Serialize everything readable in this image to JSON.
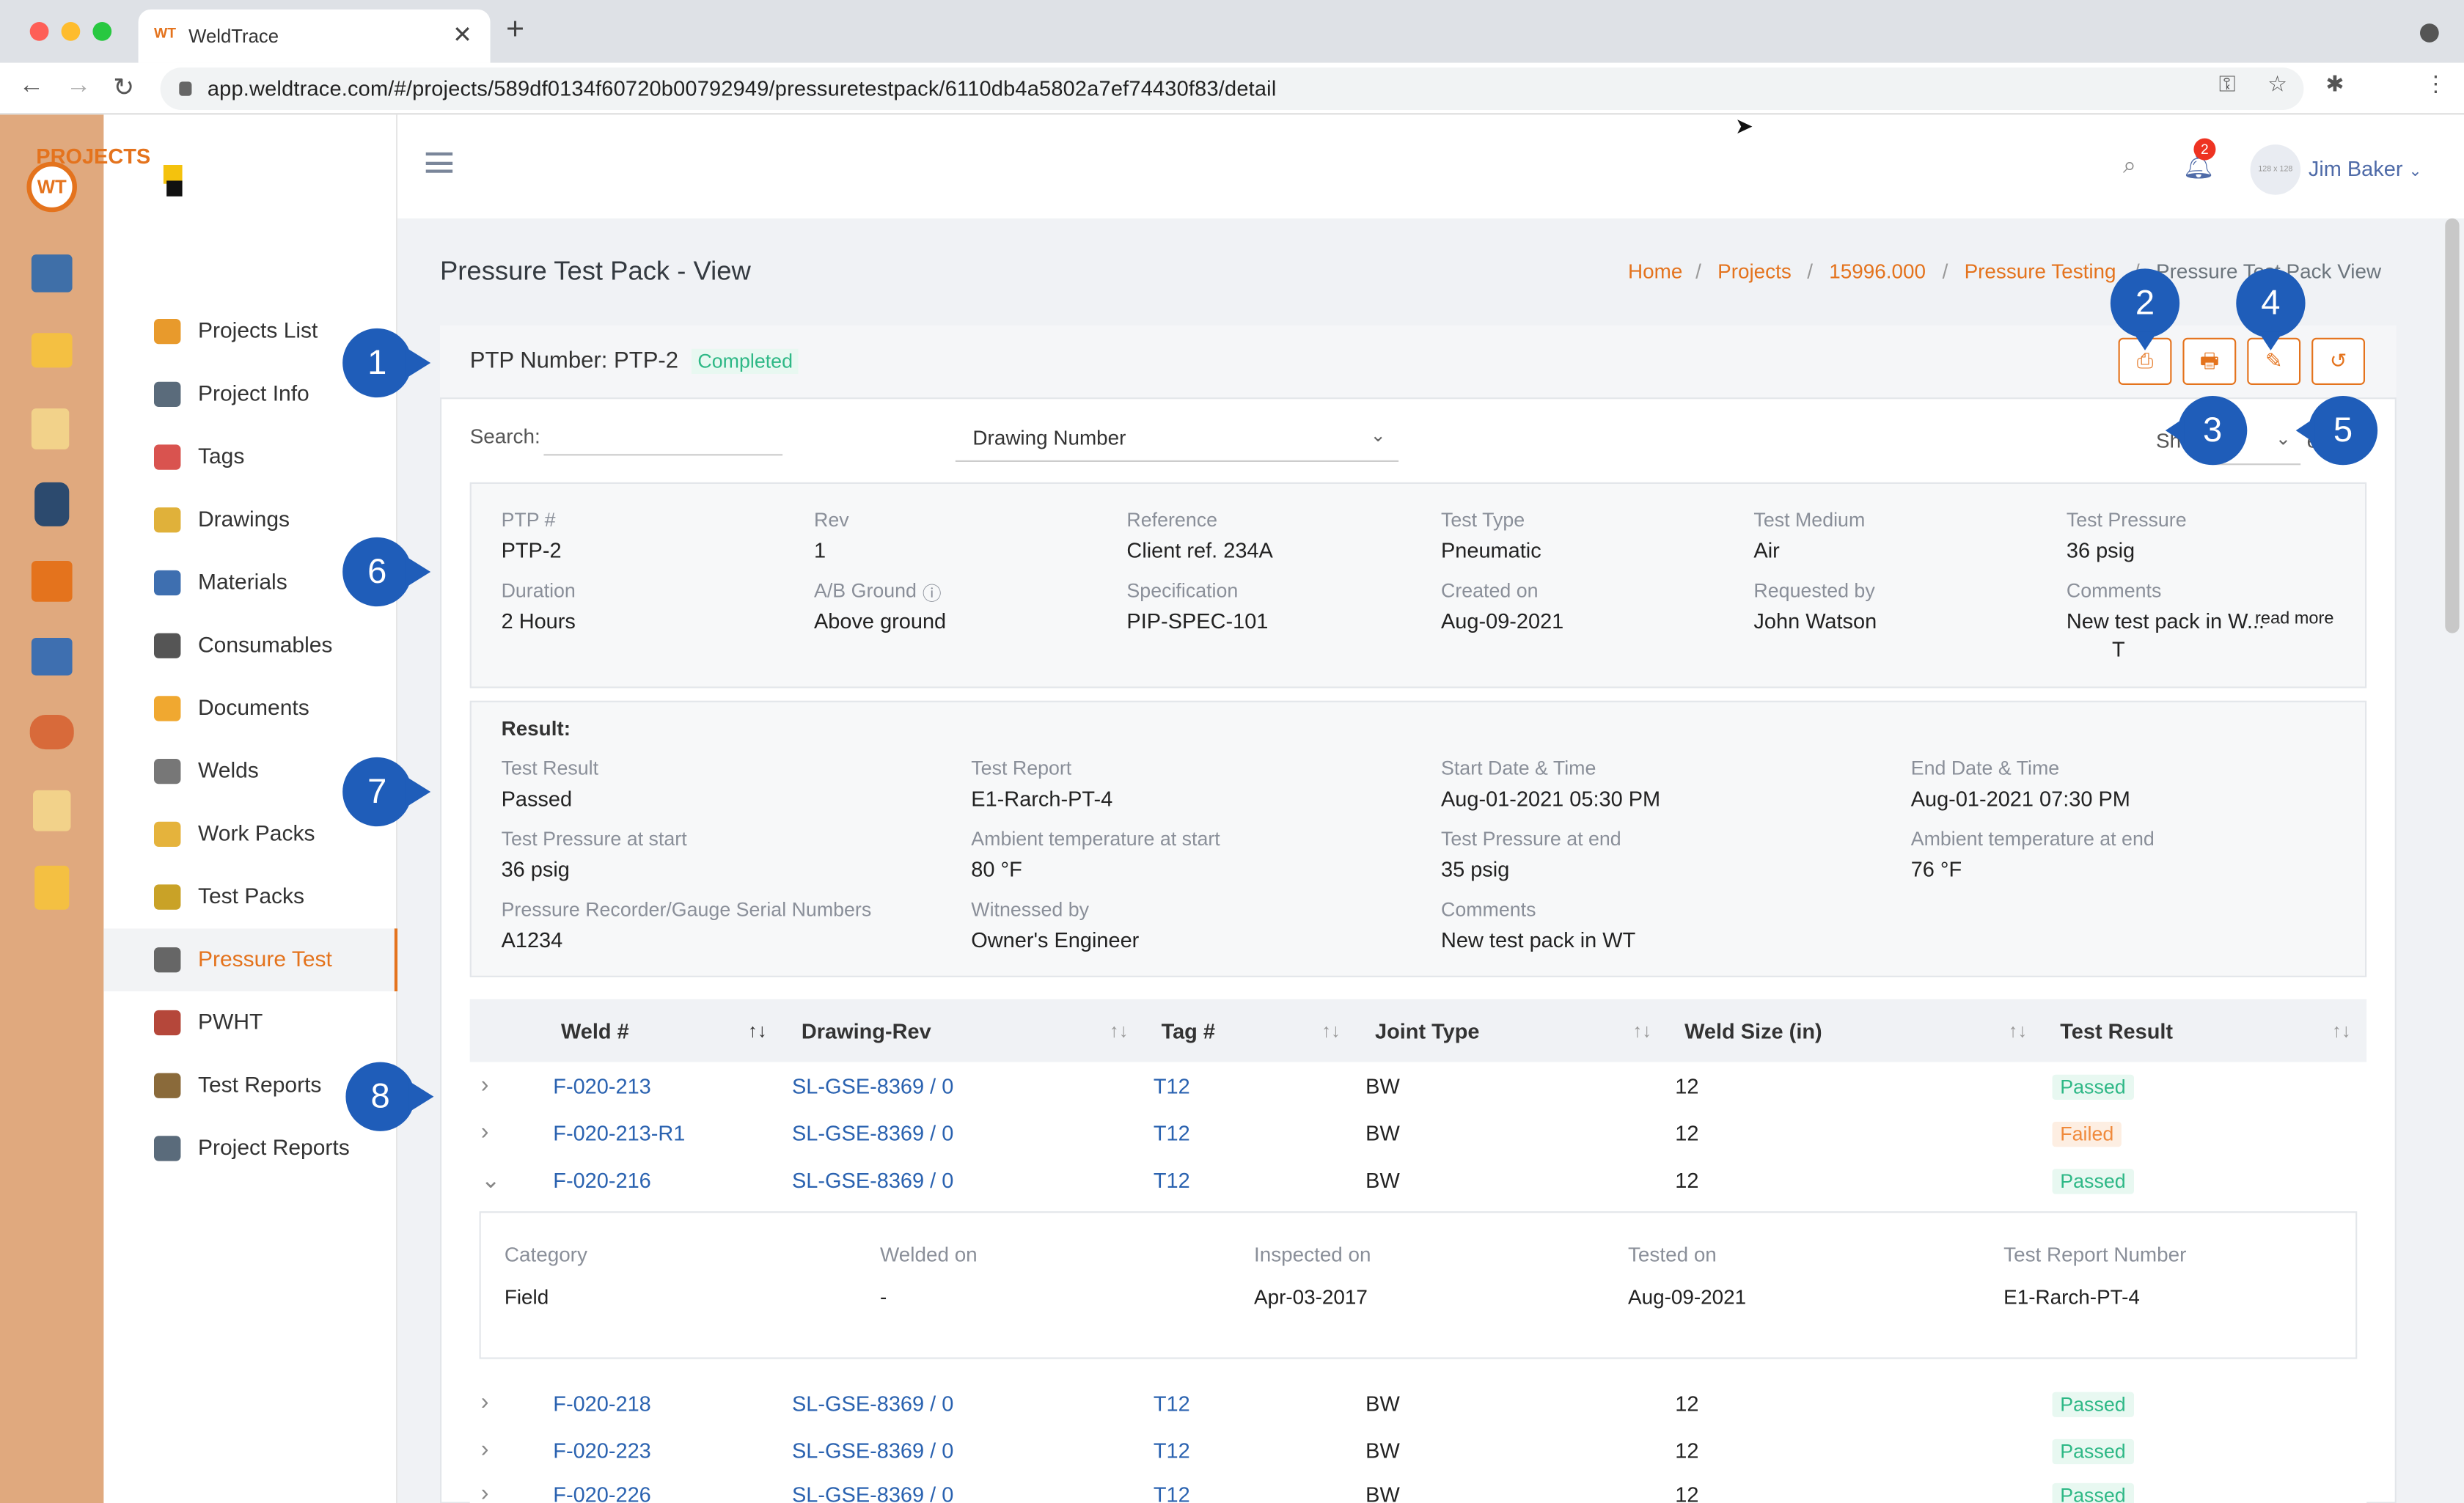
{
  "browser": {
    "tab_title": "WeldTrace",
    "tab_logo": "WT",
    "url": "app.weldtrace.com/#/projects/589df0134f60720b00792949/pressuretestpack/6110db4a5802a7ef74430f83/detail"
  },
  "sidebar": {
    "heading": "PROJECTS",
    "items": [
      {
        "label": "Projects List",
        "icon": "camera-icon",
        "color": "#e89a2c"
      },
      {
        "label": "Project Info",
        "icon": "gears-icon",
        "color": "#5a6b7b"
      },
      {
        "label": "Tags",
        "icon": "tag-icon",
        "color": "#d9534f"
      },
      {
        "label": "Drawings",
        "icon": "compass-icon",
        "color": "#e0b13a"
      },
      {
        "label": "Materials",
        "icon": "pipes-icon",
        "color": "#3e6fb0"
      },
      {
        "label": "Consumables",
        "icon": "canister-icon",
        "color": "#555"
      },
      {
        "label": "Documents",
        "icon": "folder-icon",
        "color": "#f0a830"
      },
      {
        "label": "Welds",
        "icon": "weld-torch-icon",
        "color": "#777"
      },
      {
        "label": "Work Packs",
        "icon": "package-icon",
        "color": "#e5b33c"
      },
      {
        "label": "Test Packs",
        "icon": "radiation-icon",
        "color": "#c9a227"
      },
      {
        "label": "Pressure Test",
        "icon": "gauge-icon",
        "color": "#666"
      },
      {
        "label": "PWHT",
        "icon": "heater-icon",
        "color": "#b5473a"
      },
      {
        "label": "Test Reports",
        "icon": "clipboard-icon",
        "color": "#8a6a3a"
      },
      {
        "label": "Project Reports",
        "icon": "report-icon",
        "color": "#5a6b7b"
      }
    ],
    "active": "Pressure Test"
  },
  "header": {
    "notification_count": "2",
    "avatar_placeholder": "128 x 128",
    "user_name": "Jim Baker"
  },
  "page": {
    "title": "Pressure Test Pack - View",
    "breadcrumb": [
      "Home",
      "Projects",
      "15996.000",
      "Pressure Testing",
      "Pressure Test Pack View"
    ]
  },
  "ptp": {
    "number_label": "PTP Number: PTP-2",
    "status": "Completed"
  },
  "filters": {
    "search_label": "Search:",
    "search_value": "",
    "select_value": "Drawing Number",
    "show_label": "Show",
    "show_tail": "e"
  },
  "details": [
    {
      "label": "PTP #",
      "value": "PTP-2"
    },
    {
      "label": "Rev",
      "value": "1"
    },
    {
      "label": "Reference",
      "value": "Client ref. 234A"
    },
    {
      "label": "Test Type",
      "value": "Pneumatic"
    },
    {
      "label": "Test Medium",
      "value": "Air"
    },
    {
      "label": "Test Pressure",
      "value": "36 psig"
    },
    {
      "label": "Duration",
      "value": "2 Hours"
    },
    {
      "label": "A/B Ground",
      "value": "Above ground"
    },
    {
      "label": "Specification",
      "value": "PIP-SPEC-101"
    },
    {
      "label": "Created on",
      "value": "Aug-09-2021"
    },
    {
      "label": "Requested by",
      "value": "John Watson"
    },
    {
      "label": "Comments",
      "value": "New test pack in W..."
    }
  ],
  "comment_more": "read more",
  "comment_tail": "T",
  "result": {
    "heading": "Result:",
    "fields": [
      {
        "label": "Test Result",
        "value": "Passed"
      },
      {
        "label": "Test Report",
        "value": "E1-Rarch-PT-4"
      },
      {
        "label": "Start Date & Time",
        "value": "Aug-01-2021 05:30 PM"
      },
      {
        "label": "End Date & Time",
        "value": "Aug-01-2021 07:30 PM"
      },
      {
        "label": "Test Pressure at start",
        "value": "36 psig"
      },
      {
        "label": "Ambient temperature at start",
        "value": "80 °F"
      },
      {
        "label": "Test Pressure at end",
        "value": "35 psig"
      },
      {
        "label": "Ambient temperature at end",
        "value": "76 °F"
      },
      {
        "label": "Pressure Recorder/Gauge Serial Numbers",
        "value": "A1234"
      },
      {
        "label": "Witnessed by",
        "value": "Owner's Engineer"
      },
      {
        "label": "Comments",
        "value": "New test pack in WT"
      }
    ]
  },
  "table": {
    "headers": [
      "Weld #",
      "Drawing-Rev",
      "Tag #",
      "Joint Type",
      "Weld Size (in)",
      "Test Result"
    ],
    "rows": [
      {
        "weld": "F-020-213",
        "drawing": "SL-GSE-8369 / 0",
        "tag": "T12",
        "joint": "BW",
        "size": "12",
        "result": "Passed"
      },
      {
        "weld": "F-020-213-R1",
        "drawing": "SL-GSE-8369 / 0",
        "tag": "T12",
        "joint": "BW",
        "size": "12",
        "result": "Failed"
      },
      {
        "weld": "F-020-216",
        "drawing": "SL-GSE-8369 / 0",
        "tag": "T12",
        "joint": "BW",
        "size": "12",
        "result": "Passed"
      },
      {
        "weld": "F-020-218",
        "drawing": "SL-GSE-8369 / 0",
        "tag": "T12",
        "joint": "BW",
        "size": "12",
        "result": "Passed"
      },
      {
        "weld": "F-020-223",
        "drawing": "SL-GSE-8369 / 0",
        "tag": "T12",
        "joint": "BW",
        "size": "12",
        "result": "Passed"
      },
      {
        "weld": "F-020-226",
        "drawing": "SL-GSE-8369 / 0",
        "tag": "T12",
        "joint": "BW",
        "size": "12",
        "result": "Passed"
      }
    ],
    "expanded": {
      "headers": [
        "Category",
        "Welded on",
        "Inspected on",
        "Tested on",
        "Test Report Number"
      ],
      "values": [
        "Field",
        "-",
        "Apr-03-2017",
        "Aug-09-2021",
        "E1-Rarch-PT-4"
      ]
    }
  },
  "callouts": [
    "1",
    "2",
    "3",
    "4",
    "5",
    "6",
    "7",
    "8"
  ],
  "colors": {
    "accent": "#e4731d",
    "rail": "#e0a97e",
    "link": "#2a62b0",
    "passed": "#2eb886",
    "failed": "#f08a3c",
    "callout": "#1f5db9"
  }
}
